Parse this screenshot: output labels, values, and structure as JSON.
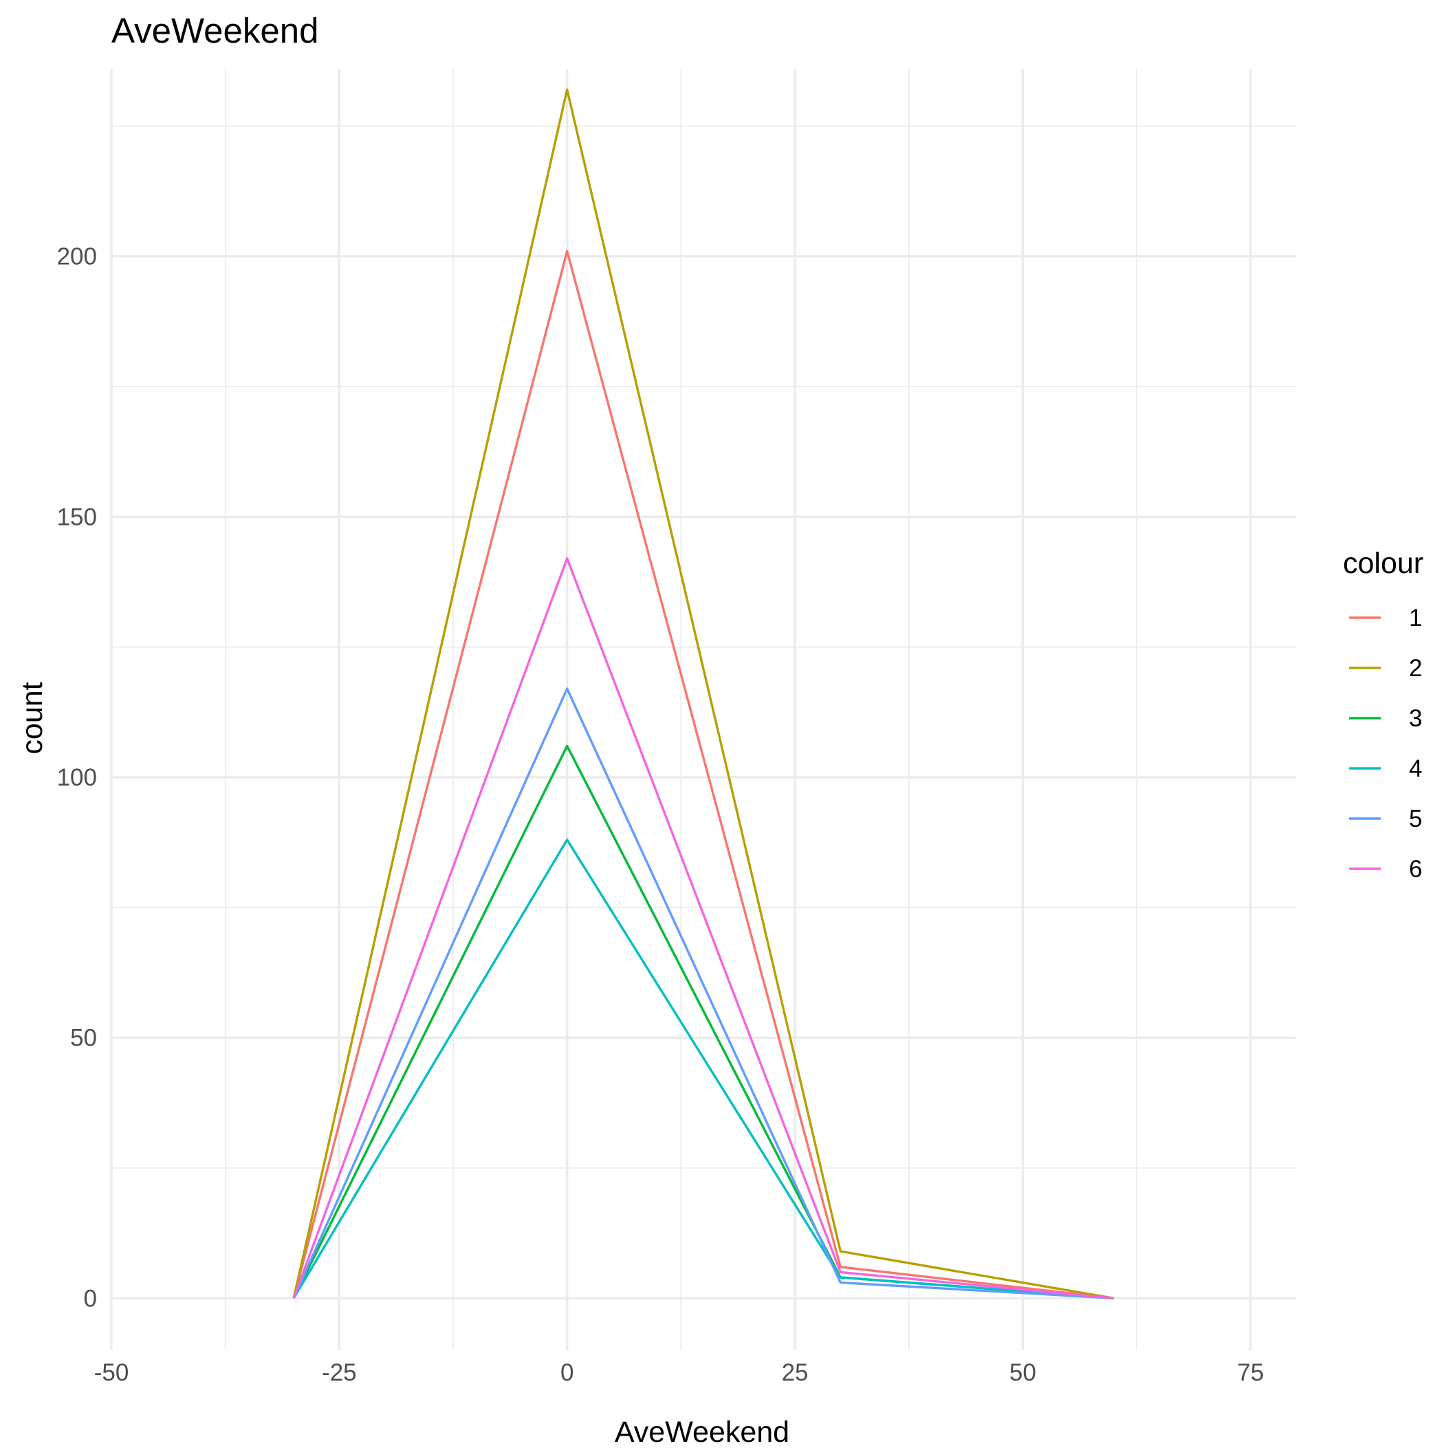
{
  "chart_data": {
    "type": "line",
    "title": "AveWeekend",
    "xlabel": "AveWeekend",
    "ylabel": "count",
    "xlim": [
      -50,
      80
    ],
    "ylim": [
      -10,
      236
    ],
    "x_ticks": [
      -50,
      -25,
      0,
      25,
      50,
      75
    ],
    "x_tick_labels": [
      "-50",
      "-25",
      "0",
      "25",
      "50",
      "75"
    ],
    "y_ticks": [
      0,
      50,
      100,
      150,
      200
    ],
    "y_tick_labels": [
      "0",
      "50",
      "100",
      "150",
      "200"
    ],
    "x_minor_ticks": [
      -37.5,
      -12.5,
      12.5,
      37.5,
      62.5
    ],
    "y_minor_ticks": [
      25,
      75,
      125,
      175,
      225
    ],
    "grid": true,
    "legend": {
      "title": "colour",
      "position": "right"
    },
    "x": [
      -30,
      0,
      30,
      60
    ],
    "series": [
      {
        "name": "1",
        "color": "#F8766D",
        "values": [
          0,
          201,
          6,
          0
        ]
      },
      {
        "name": "2",
        "color": "#B79F00",
        "values": [
          0,
          232,
          9,
          0
        ]
      },
      {
        "name": "3",
        "color": "#00BA38",
        "values": [
          0,
          106,
          4,
          0
        ]
      },
      {
        "name": "4",
        "color": "#00BFC4",
        "values": [
          0,
          88,
          4,
          0
        ]
      },
      {
        "name": "5",
        "color": "#619CFF",
        "values": [
          0,
          117,
          3,
          0
        ]
      },
      {
        "name": "6",
        "color": "#F564E3",
        "values": [
          0,
          142,
          5,
          0
        ]
      }
    ]
  }
}
